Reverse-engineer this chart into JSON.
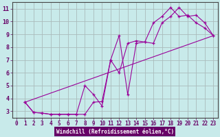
{
  "bg_color": "#c8eaea",
  "line_color": "#990099",
  "grid_color": "#aabbbb",
  "xlabel": "Windchill (Refroidissement éolien,°C)",
  "xlabel_color": "#ffffff",
  "xlabel_bg": "#660066",
  "y_ticks": [
    3,
    4,
    5,
    6,
    7,
    8,
    9,
    10,
    11
  ],
  "x_ticks": [
    0,
    1,
    2,
    3,
    4,
    5,
    6,
    7,
    8,
    9,
    10,
    11,
    12,
    13,
    14,
    15,
    16,
    17,
    18,
    19,
    20,
    21,
    22,
    23
  ],
  "xlim": [
    -0.5,
    23.5
  ],
  "ylim": [
    2.5,
    11.5
  ],
  "line1_x": [
    1,
    2,
    3,
    4,
    5,
    6,
    7,
    8,
    9,
    10,
    11,
    12,
    13,
    14,
    15,
    16,
    17,
    18,
    19,
    20,
    21,
    22,
    23
  ],
  "line1_y": [
    3.7,
    2.9,
    2.85,
    2.75,
    2.75,
    2.75,
    2.75,
    2.75,
    3.7,
    3.75,
    7.0,
    6.0,
    8.3,
    8.5,
    8.4,
    9.9,
    10.4,
    11.1,
    10.4,
    10.5,
    9.9,
    9.5,
    8.9
  ],
  "line2_x": [
    1,
    2,
    3,
    4,
    5,
    6,
    7,
    8,
    9,
    10,
    11,
    12,
    13,
    14,
    15,
    16,
    17,
    18,
    19,
    20,
    21,
    22,
    23
  ],
  "line2_y": [
    3.7,
    2.9,
    2.85,
    2.75,
    2.75,
    2.75,
    2.75,
    5.0,
    4.3,
    3.4,
    7.0,
    8.9,
    4.3,
    8.3,
    8.4,
    8.3,
    9.9,
    10.4,
    11.1,
    10.4,
    10.5,
    9.9,
    8.9
  ],
  "line3_x": [
    1,
    23
  ],
  "line3_y": [
    3.7,
    8.9
  ],
  "tick_fontsize": 5.5,
  "xlabel_fontsize": 5.5
}
